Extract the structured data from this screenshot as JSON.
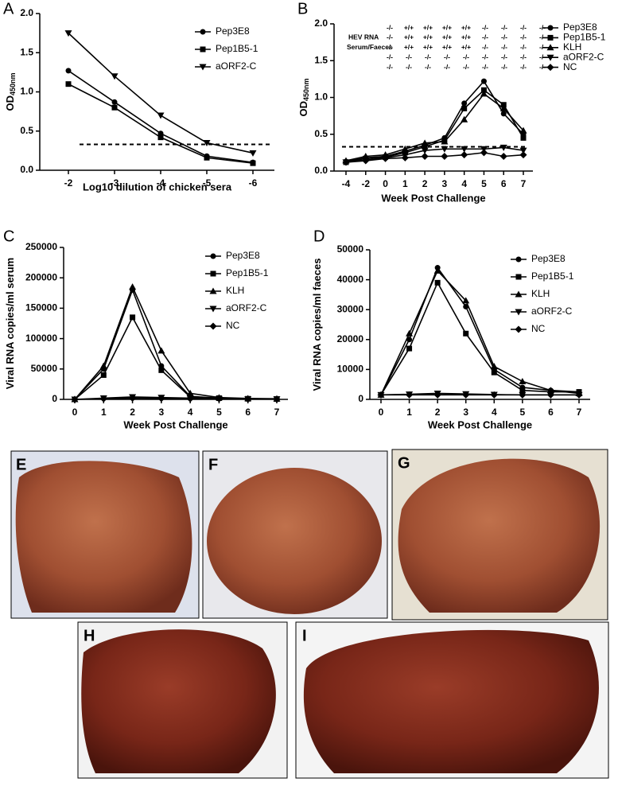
{
  "chart_data": [
    {
      "type": "line",
      "panel": "A",
      "xlabel": "Log10 dilution of chicken sera",
      "ylabel": "OD",
      "ylabel_subscript": "450nm",
      "categories": [
        "-2",
        "-3",
        "-4",
        "-5",
        "-6"
      ],
      "ylim": [
        0,
        2
      ],
      "yticks": [
        {
          "value": 0,
          "label": "0.0"
        },
        {
          "value": 0.5,
          "label": "0.5"
        },
        {
          "value": 1,
          "label": "1.0"
        },
        {
          "value": 1.5,
          "label": "1.5"
        },
        {
          "value": 2,
          "label": "2.0"
        }
      ],
      "cutoff": 0.33,
      "series": [
        {
          "name": "Pep3E8",
          "marker": "circle",
          "color": "#000000",
          "values": [
            1.27,
            0.87,
            0.47,
            0.18,
            0.1
          ]
        },
        {
          "name": "Pep1B5-1",
          "marker": "square",
          "color": "#000000",
          "values": [
            1.1,
            0.8,
            0.42,
            0.16,
            0.09
          ]
        },
        {
          "name": "aORF2-C",
          "marker": "triangle-down",
          "color": "#000000",
          "values": [
            1.75,
            1.2,
            0.7,
            0.35,
            0.22
          ]
        }
      ]
    },
    {
      "type": "line",
      "panel": "B",
      "xlabel": "Week Post Challenge",
      "ylabel": "OD",
      "ylabel_subscript": "450nm",
      "categories": [
        "-4",
        "-2",
        "0",
        "1",
        "2",
        "3",
        "4",
        "5",
        "6",
        "7"
      ],
      "ylim": [
        0,
        2
      ],
      "yticks": [
        {
          "value": 0,
          "label": "0.0"
        },
        {
          "value": 0.5,
          "label": "0.5"
        },
        {
          "value": 1,
          "label": "1.0"
        },
        {
          "value": 1.5,
          "label": "1.5"
        },
        {
          "value": 2,
          "label": "2.0"
        }
      ],
      "cutoff": 0.33,
      "annotation": {
        "label": [
          "HEV RNA",
          "Serum/Faeces"
        ],
        "rows": [
          [
            "-/-",
            "+/+",
            "+/+",
            "+/+",
            "+/+",
            "-/-",
            "-/-",
            "-/-",
            "-/-"
          ],
          [
            "-/-",
            "+/+",
            "+/+",
            "+/+",
            "+/+",
            "-/-",
            "-/-",
            "-/-",
            "-/-"
          ],
          [
            "-/-",
            "+/+",
            "+/+",
            "+/+",
            "+/+",
            "-/-",
            "-/-",
            "-/-",
            "-/-"
          ],
          [
            "-/-",
            "-/-",
            "-/-",
            "-/-",
            "-/-",
            "-/-",
            "-/-",
            "-/-",
            "-/-"
          ],
          [
            "-/-",
            "-/-",
            "-/-",
            "-/-",
            "-/-",
            "-/-",
            "-/-",
            "-/-",
            "-/-"
          ]
        ]
      },
      "series": [
        {
          "name": "Pep3E8",
          "marker": "circle",
          "color": "#000000",
          "values": [
            0.13,
            0.18,
            0.2,
            0.27,
            0.35,
            0.45,
            0.92,
            1.22,
            0.78,
            0.5
          ]
        },
        {
          "name": "Pep1B5-1",
          "marker": "square",
          "color": "#000000",
          "values": [
            0.12,
            0.17,
            0.19,
            0.25,
            0.33,
            0.42,
            0.85,
            1.1,
            0.9,
            0.45
          ]
        },
        {
          "name": "KLH",
          "marker": "triangle",
          "color": "#000000",
          "values": [
            0.14,
            0.2,
            0.22,
            0.3,
            0.38,
            0.4,
            0.7,
            1.05,
            0.85,
            0.55
          ]
        },
        {
          "name": "aORF2-C",
          "marker": "triangle-down",
          "color": "#000000",
          "values": [
            0.12,
            0.15,
            0.18,
            0.22,
            0.28,
            0.3,
            0.3,
            0.3,
            0.32,
            0.28
          ]
        },
        {
          "name": "NC",
          "marker": "diamond",
          "color": "#000000",
          "values": [
            0.12,
            0.14,
            0.17,
            0.18,
            0.2,
            0.2,
            0.22,
            0.25,
            0.2,
            0.22
          ]
        }
      ]
    },
    {
      "type": "line",
      "panel": "C",
      "xlabel": "Week Post Challenge",
      "ylabel": "Viral RNA copies/ml serum",
      "categories": [
        "0",
        "1",
        "2",
        "3",
        "4",
        "5",
        "6",
        "7"
      ],
      "ylim": [
        0,
        250000
      ],
      "yticks": [
        0,
        50000,
        100000,
        150000,
        200000,
        250000
      ],
      "series": [
        {
          "name": "Pep3E8",
          "marker": "circle",
          "color": "#000000",
          "values": [
            0,
            50000,
            180000,
            55000,
            5000,
            2000,
            1000,
            500
          ]
        },
        {
          "name": "Pep1B5-1",
          "marker": "square",
          "color": "#000000",
          "values": [
            0,
            40000,
            135000,
            48000,
            4000,
            2000,
            1000,
            500
          ]
        },
        {
          "name": "KLH",
          "marker": "triangle",
          "color": "#000000",
          "values": [
            0,
            55000,
            185000,
            80000,
            10000,
            3000,
            1500,
            1000
          ]
        },
        {
          "name": "aORF2-C",
          "marker": "triangle-down",
          "color": "#000000",
          "values": [
            0,
            2000,
            4000,
            3000,
            2000,
            1000,
            500,
            500
          ]
        },
        {
          "name": "NC",
          "marker": "diamond",
          "color": "#000000",
          "values": [
            0,
            1000,
            2000,
            1500,
            1000,
            1000,
            500,
            500
          ]
        }
      ]
    },
    {
      "type": "line",
      "panel": "D",
      "xlabel": "Week Post Challenge",
      "ylabel": "Viral RNA copies/ml faeces",
      "categories": [
        "0",
        "1",
        "2",
        "3",
        "4",
        "5",
        "6",
        "7"
      ],
      "ylim": [
        0,
        50000
      ],
      "yticks": [
        0,
        10000,
        20000,
        30000,
        40000,
        50000
      ],
      "series": [
        {
          "name": "Pep3E8",
          "marker": "circle",
          "color": "#000000",
          "values": [
            1500,
            20000,
            44000,
            31000,
            10000,
            4000,
            3000,
            2500
          ]
        },
        {
          "name": "Pep1B5-1",
          "marker": "square",
          "color": "#000000",
          "values": [
            1500,
            17000,
            39000,
            22000,
            9000,
            3000,
            2500,
            2500
          ]
        },
        {
          "name": "KLH",
          "marker": "triangle",
          "color": "#000000",
          "values": [
            1500,
            22000,
            43000,
            33000,
            11000,
            6000,
            3000,
            2000
          ]
        },
        {
          "name": "aORF2-C",
          "marker": "triangle-down",
          "color": "#000000",
          "values": [
            1500,
            1700,
            2000,
            1800,
            1600,
            1500,
            1500,
            1500
          ]
        },
        {
          "name": "NC",
          "marker": "diamond",
          "color": "#000000",
          "values": [
            1500,
            1500,
            1500,
            1500,
            1500,
            1500,
            1500,
            1500
          ]
        }
      ]
    }
  ],
  "photos": [
    {
      "label": "E"
    },
    {
      "label": "F"
    },
    {
      "label": "G"
    },
    {
      "label": "H"
    },
    {
      "label": "I"
    }
  ]
}
